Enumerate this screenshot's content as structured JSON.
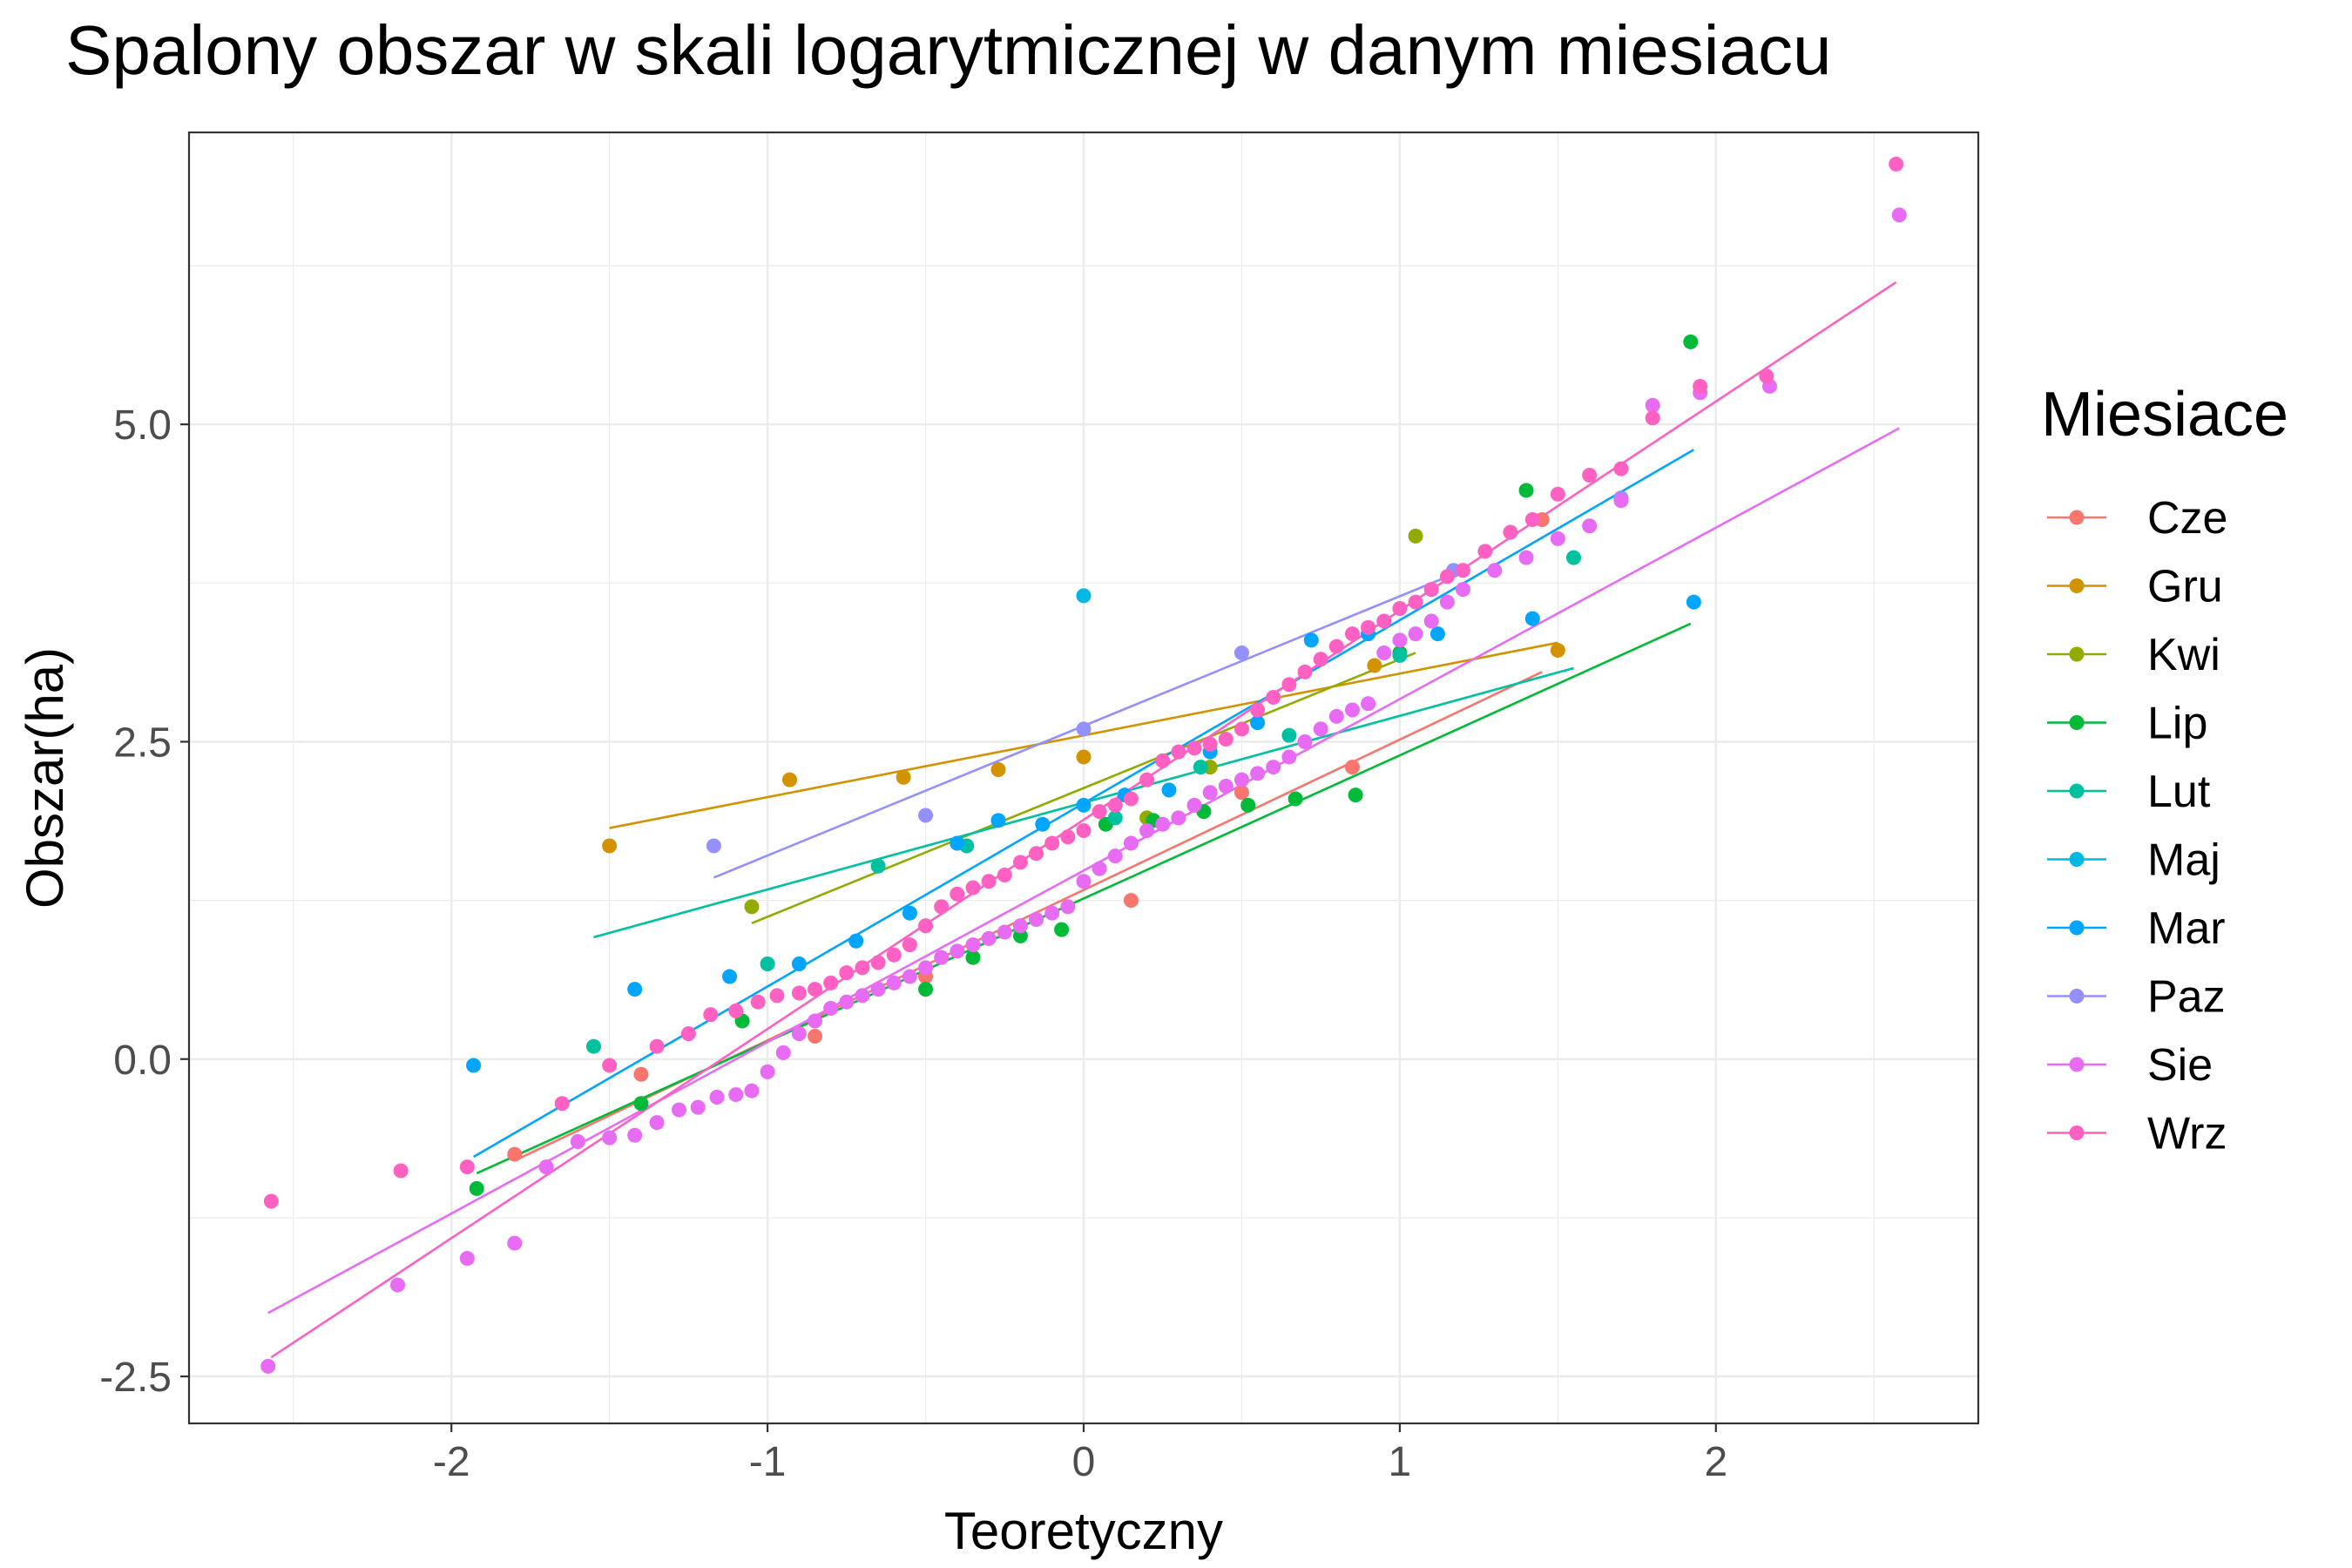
{
  "chart_data": {
    "type": "scatter",
    "title": "Spalony obszar w skali logarytmicznej w danym miesiacu",
    "xlabel": "Teoretyczny",
    "ylabel": "Obszar(ha)",
    "xlim": [
      -2.83,
      2.83
    ],
    "ylim": [
      -2.87,
      7.3
    ],
    "x_ticks": [
      -2,
      -1,
      0,
      1,
      2
    ],
    "x_tick_labels": [
      "-2",
      "-1",
      "0",
      "1",
      "2"
    ],
    "y_ticks": [
      -2.5,
      0.0,
      2.5,
      5.0
    ],
    "y_tick_labels": [
      "-2.5",
      "0.0",
      "2.5",
      "5.0"
    ],
    "grid": true,
    "legend": {
      "title": "Miesiace",
      "position": "right"
    },
    "series": [
      {
        "name": "Cze",
        "color": "#F8766D",
        "line": [
          [
            -1.8,
            -0.8
          ],
          [
            1.45,
            3.05
          ]
        ],
        "points": [
          [
            -1.8,
            -0.75
          ],
          [
            -1.4,
            -0.12
          ],
          [
            -0.85,
            0.18
          ],
          [
            -0.5,
            0.65
          ],
          [
            0.15,
            1.25
          ],
          [
            0.5,
            2.1
          ],
          [
            0.85,
            2.3
          ],
          [
            1.45,
            4.25
          ]
        ]
      },
      {
        "name": "Gru",
        "color": "#D39200",
        "line": [
          [
            -1.5,
            1.82
          ],
          [
            1.5,
            3.28
          ]
        ],
        "points": [
          [
            -1.5,
            1.68
          ],
          [
            -0.93,
            2.2
          ],
          [
            -0.57,
            2.22
          ],
          [
            -0.27,
            2.28
          ],
          [
            0.0,
            2.38
          ],
          [
            0.92,
            3.1
          ],
          [
            1.5,
            3.22
          ]
        ]
      },
      {
        "name": "Kwi",
        "color": "#93AA00",
        "line": [
          [
            -1.05,
            1.07
          ],
          [
            1.05,
            3.2
          ]
        ],
        "points": [
          [
            -1.05,
            1.2
          ],
          [
            -0.4,
            1.7
          ],
          [
            0.2,
            1.9
          ],
          [
            0.4,
            2.3
          ],
          [
            1.05,
            4.12
          ]
        ]
      },
      {
        "name": "Lip",
        "color": "#00BA38",
        "line": [
          [
            -1.92,
            -0.9
          ],
          [
            1.92,
            3.43
          ]
        ],
        "points": [
          [
            -1.92,
            -1.02
          ],
          [
            -1.4,
            -0.35
          ],
          [
            -1.08,
            0.3
          ],
          [
            -0.5,
            0.55
          ],
          [
            -0.35,
            0.8
          ],
          [
            -0.2,
            0.97
          ],
          [
            -0.07,
            1.02
          ],
          [
            0.07,
            1.85
          ],
          [
            0.22,
            1.88
          ],
          [
            0.38,
            1.95
          ],
          [
            0.52,
            2.0
          ],
          [
            0.67,
            2.05
          ],
          [
            0.86,
            2.08
          ],
          [
            1.0,
            3.2
          ],
          [
            1.4,
            4.48
          ],
          [
            1.92,
            5.65
          ]
        ]
      },
      {
        "name": "Lut",
        "color": "#00C19F",
        "line": [
          [
            -1.55,
            0.96
          ],
          [
            1.55,
            3.08
          ]
        ],
        "points": [
          [
            -1.55,
            0.1
          ],
          [
            -1.0,
            0.75
          ],
          [
            -0.65,
            1.52
          ],
          [
            -0.37,
            1.68
          ],
          [
            0.1,
            1.9
          ],
          [
            0.37,
            2.3
          ],
          [
            0.65,
            2.55
          ],
          [
            1.0,
            3.18
          ],
          [
            1.55,
            3.95
          ]
        ]
      },
      {
        "name": "Maj",
        "color": "#00B9E3",
        "line": [],
        "points": [
          [
            0.0,
            3.65
          ]
        ]
      },
      {
        "name": "Mar",
        "color": "#00A5FF",
        "line": [
          [
            -1.93,
            -0.77
          ],
          [
            1.93,
            4.8
          ]
        ],
        "points": [
          [
            -1.93,
            -0.05
          ],
          [
            -1.42,
            0.55
          ],
          [
            -1.12,
            0.65
          ],
          [
            -0.9,
            0.75
          ],
          [
            -0.72,
            0.93
          ],
          [
            -0.55,
            1.15
          ],
          [
            -0.4,
            1.7
          ],
          [
            -0.27,
            1.88
          ],
          [
            -0.13,
            1.85
          ],
          [
            0.0,
            2.0
          ],
          [
            0.13,
            2.08
          ],
          [
            0.27,
            2.12
          ],
          [
            0.4,
            2.42
          ],
          [
            0.55,
            2.65
          ],
          [
            0.72,
            3.3
          ],
          [
            0.9,
            3.35
          ],
          [
            1.12,
            3.35
          ],
          [
            1.42,
            3.47
          ],
          [
            1.93,
            3.6
          ]
        ]
      },
      {
        "name": "Paz",
        "color": "#9590FF",
        "line": [
          [
            -1.17,
            1.43
          ],
          [
            1.17,
            3.82
          ]
        ],
        "points": [
          [
            -1.17,
            1.68
          ],
          [
            -0.5,
            1.92
          ],
          [
            0.0,
            2.6
          ],
          [
            0.5,
            3.2
          ],
          [
            1.17,
            3.85
          ],
          [
            1.7,
            4.42
          ]
        ]
      },
      {
        "name": "Sie",
        "color": "#E76BF3",
        "line": [
          [
            -2.58,
            -2.0
          ],
          [
            2.58,
            4.97
          ]
        ],
        "points": [
          [
            -2.58,
            -2.42
          ],
          [
            -2.17,
            -1.78
          ],
          [
            -1.95,
            -1.57
          ],
          [
            -1.8,
            -1.45
          ],
          [
            -1.7,
            -0.85
          ],
          [
            -1.6,
            -0.65
          ],
          [
            -1.5,
            -0.62
          ],
          [
            -1.42,
            -0.6
          ],
          [
            -1.35,
            -0.5
          ],
          [
            -1.28,
            -0.4
          ],
          [
            -1.22,
            -0.38
          ],
          [
            -1.16,
            -0.3
          ],
          [
            -1.1,
            -0.28
          ],
          [
            -1.05,
            -0.25
          ],
          [
            -1.0,
            -0.1
          ],
          [
            -0.95,
            0.05
          ],
          [
            -0.9,
            0.2
          ],
          [
            -0.85,
            0.3
          ],
          [
            -0.8,
            0.4
          ],
          [
            -0.75,
            0.45
          ],
          [
            -0.7,
            0.5
          ],
          [
            -0.65,
            0.55
          ],
          [
            -0.6,
            0.6
          ],
          [
            -0.55,
            0.65
          ],
          [
            -0.5,
            0.72
          ],
          [
            -0.45,
            0.8
          ],
          [
            -0.4,
            0.85
          ],
          [
            -0.35,
            0.9
          ],
          [
            -0.3,
            0.95
          ],
          [
            -0.25,
            1.0
          ],
          [
            -0.2,
            1.05
          ],
          [
            -0.15,
            1.1
          ],
          [
            -0.1,
            1.15
          ],
          [
            -0.05,
            1.2
          ],
          [
            0.0,
            1.4
          ],
          [
            0.05,
            1.5
          ],
          [
            0.1,
            1.6
          ],
          [
            0.15,
            1.7
          ],
          [
            0.2,
            1.8
          ],
          [
            0.25,
            1.85
          ],
          [
            0.3,
            1.9
          ],
          [
            0.35,
            2.0
          ],
          [
            0.4,
            2.1
          ],
          [
            0.45,
            2.15
          ],
          [
            0.5,
            2.2
          ],
          [
            0.55,
            2.25
          ],
          [
            0.6,
            2.3
          ],
          [
            0.65,
            2.38
          ],
          [
            0.7,
            2.5
          ],
          [
            0.75,
            2.6
          ],
          [
            0.8,
            2.7
          ],
          [
            0.85,
            2.75
          ],
          [
            0.9,
            2.8
          ],
          [
            0.95,
            3.2
          ],
          [
            1.0,
            3.3
          ],
          [
            1.05,
            3.35
          ],
          [
            1.1,
            3.45
          ],
          [
            1.15,
            3.6
          ],
          [
            1.2,
            3.7
          ],
          [
            1.3,
            3.85
          ],
          [
            1.4,
            3.95
          ],
          [
            1.5,
            4.1
          ],
          [
            1.6,
            4.2
          ],
          [
            1.7,
            4.4
          ],
          [
            1.8,
            5.15
          ],
          [
            1.95,
            5.25
          ],
          [
            2.17,
            5.3
          ],
          [
            2.58,
            6.65
          ]
        ]
      },
      {
        "name": "Wrz",
        "color": "#FF61C3",
        "line": [
          [
            -2.57,
            -2.35
          ],
          [
            2.57,
            6.12
          ]
        ],
        "points": [
          [
            -2.57,
            -1.12
          ],
          [
            -2.16,
            -0.88
          ],
          [
            -1.95,
            -0.85
          ],
          [
            -1.65,
            -0.35
          ],
          [
            -1.5,
            -0.05
          ],
          [
            -1.35,
            0.1
          ],
          [
            -1.25,
            0.2
          ],
          [
            -1.18,
            0.35
          ],
          [
            -1.1,
            0.38
          ],
          [
            -1.03,
            0.45
          ],
          [
            -0.97,
            0.5
          ],
          [
            -0.9,
            0.52
          ],
          [
            -0.85,
            0.55
          ],
          [
            -0.8,
            0.6
          ],
          [
            -0.75,
            0.68
          ],
          [
            -0.7,
            0.72
          ],
          [
            -0.65,
            0.76
          ],
          [
            -0.6,
            0.82
          ],
          [
            -0.55,
            0.9
          ],
          [
            -0.5,
            1.05
          ],
          [
            -0.45,
            1.2
          ],
          [
            -0.4,
            1.3
          ],
          [
            -0.35,
            1.35
          ],
          [
            -0.3,
            1.4
          ],
          [
            -0.25,
            1.45
          ],
          [
            -0.2,
            1.55
          ],
          [
            -0.15,
            1.62
          ],
          [
            -0.1,
            1.7
          ],
          [
            -0.05,
            1.75
          ],
          [
            0.0,
            1.8
          ],
          [
            0.05,
            1.95
          ],
          [
            0.1,
            2.0
          ],
          [
            0.15,
            2.05
          ],
          [
            0.2,
            2.2
          ],
          [
            0.25,
            2.35
          ],
          [
            0.3,
            2.42
          ],
          [
            0.35,
            2.45
          ],
          [
            0.4,
            2.48
          ],
          [
            0.45,
            2.52
          ],
          [
            0.5,
            2.6
          ],
          [
            0.55,
            2.75
          ],
          [
            0.6,
            2.85
          ],
          [
            0.65,
            2.95
          ],
          [
            0.7,
            3.05
          ],
          [
            0.75,
            3.15
          ],
          [
            0.8,
            3.25
          ],
          [
            0.85,
            3.35
          ],
          [
            0.9,
            3.4
          ],
          [
            0.95,
            3.45
          ],
          [
            1.0,
            3.55
          ],
          [
            1.05,
            3.6
          ],
          [
            1.1,
            3.7
          ],
          [
            1.15,
            3.8
          ],
          [
            1.2,
            3.85
          ],
          [
            1.27,
            4.0
          ],
          [
            1.35,
            4.15
          ],
          [
            1.42,
            4.25
          ],
          [
            1.5,
            4.45
          ],
          [
            1.6,
            4.6
          ],
          [
            1.7,
            4.65
          ],
          [
            1.8,
            5.05
          ],
          [
            1.95,
            5.3
          ],
          [
            2.16,
            5.38
          ],
          [
            2.57,
            7.05
          ]
        ]
      }
    ]
  }
}
